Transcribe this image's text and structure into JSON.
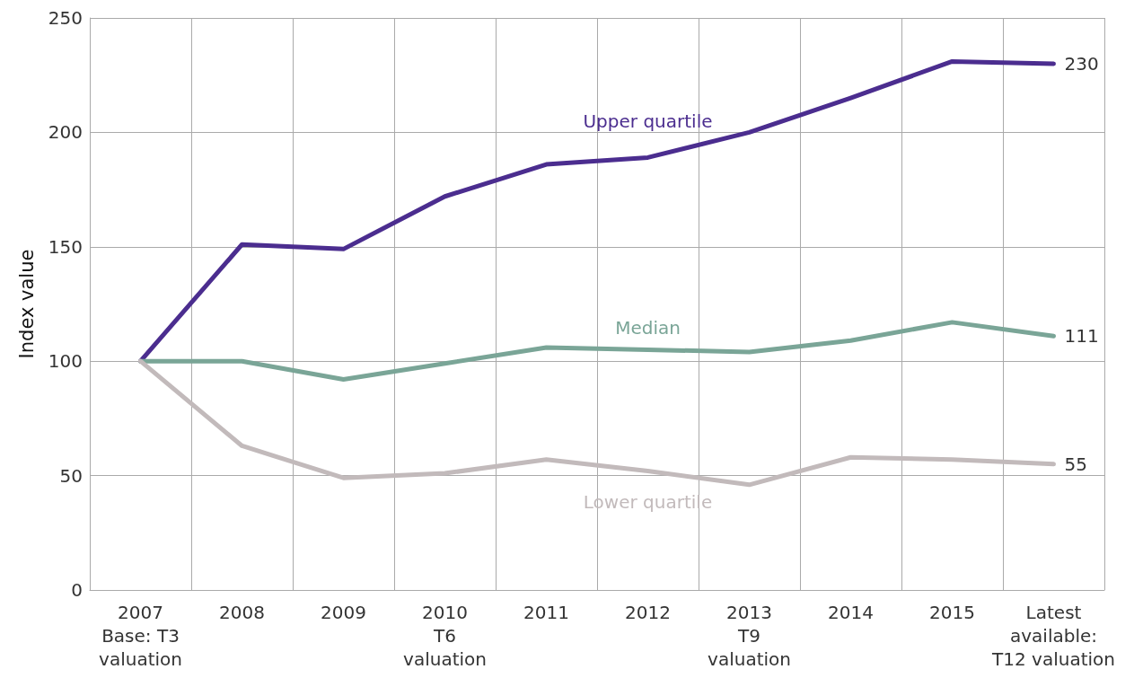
{
  "chart_data": {
    "type": "line",
    "ylabel": "Index value",
    "categories": [
      "2007\nBase: T3\nvaluation",
      "2008",
      "2009",
      "2010\nT6\nvaluation",
      "2011",
      "2012",
      "2013\nT9\nvaluation",
      "2014",
      "2015",
      "Latest\navailable:\nT12 valuation"
    ],
    "series": [
      {
        "name": "Upper quartile",
        "color": "#4b2d8f",
        "values": [
          100,
          151,
          149,
          172,
          186,
          189,
          200,
          215,
          231,
          230
        ],
        "value_labels": [
          null,
          null,
          null,
          null,
          null,
          null,
          null,
          null,
          null,
          "230"
        ]
      },
      {
        "name": "Median",
        "color": "#7aa597",
        "values": [
          100,
          100,
          92,
          99,
          106,
          105,
          104,
          109,
          117,
          111
        ],
        "value_labels": [
          null,
          null,
          null,
          null,
          null,
          null,
          null,
          null,
          null,
          "111"
        ]
      },
      {
        "name": "Lower quartile",
        "color": "#c2babb",
        "values": [
          100,
          63,
          49,
          51,
          57,
          52,
          46,
          58,
          57,
          55
        ],
        "value_labels": [
          null,
          null,
          null,
          null,
          null,
          null,
          null,
          null,
          null,
          "55"
        ]
      }
    ],
    "ylim": [
      0,
      250
    ],
    "yticks": [
      0,
      50,
      100,
      150,
      200,
      250
    ],
    "grid": true,
    "legend": false,
    "marker": "none",
    "line_style": "solid"
  }
}
